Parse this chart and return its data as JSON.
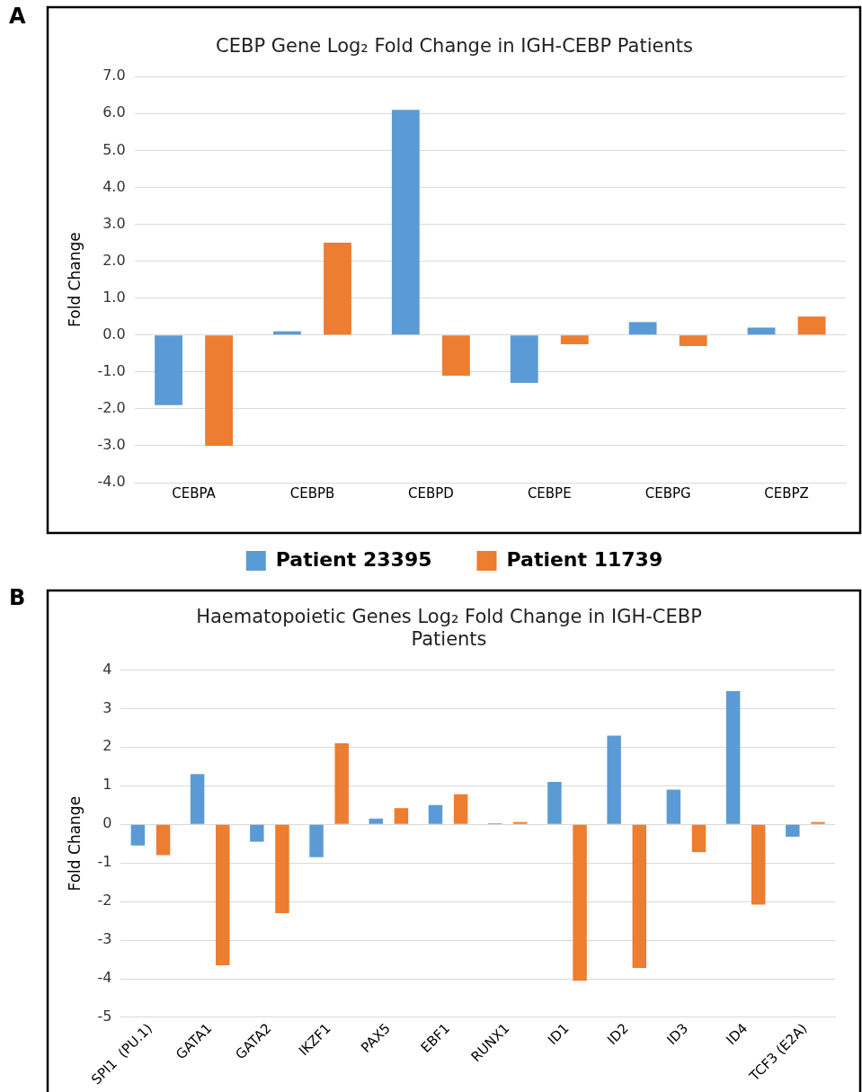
{
  "chart_data": [
    {
      "type": "bar",
      "title": "CEBP Gene Log₂ Fold Change in IGH-CEBP Patients",
      "ylabel": "Fold Change",
      "categories": [
        "CEBPA",
        "CEBPB",
        "CEBPD",
        "CEBPE",
        "CEBPG",
        "CEBPZ"
      ],
      "series": [
        {
          "name": "Patient 23395",
          "color": "#5b9bd5",
          "values": [
            -1.9,
            0.1,
            6.1,
            -1.3,
            0.35,
            0.2
          ]
        },
        {
          "name": "Patient 11739",
          "color": "#ed7d31",
          "values": [
            -3.0,
            2.5,
            -1.1,
            -0.25,
            -0.3,
            0.5
          ]
        }
      ],
      "ylim": [
        -4,
        7
      ],
      "yticks": [
        {
          "value": -4,
          "label": "-4.0"
        },
        {
          "value": -3,
          "label": "-3.0"
        },
        {
          "value": -2,
          "label": "-2.0"
        },
        {
          "value": -1,
          "label": "-1.0"
        },
        {
          "value": 0,
          "label": "0.0"
        },
        {
          "value": 1,
          "label": "1.0"
        },
        {
          "value": 2,
          "label": "2.0"
        },
        {
          "value": 3,
          "label": "3.0"
        },
        {
          "value": 4,
          "label": "4.0"
        },
        {
          "value": 5,
          "label": "5.0"
        },
        {
          "value": 6,
          "label": "6.0"
        },
        {
          "value": 7,
          "label": "7.0"
        }
      ],
      "grid": "y",
      "legend": "bottom",
      "annotations": [
        "A"
      ]
    },
    {
      "type": "bar",
      "title": "Haematopoietic Genes Log₂ Fold Change in IGH-CEBP Patients",
      "ylabel": "Fold Change",
      "categories": [
        "SPI1  (PU.1)",
        "GATA1",
        "GATA2",
        "IKZF1",
        "PAX5",
        "EBF1",
        "RUNX1",
        "ID1",
        "ID2",
        "ID3",
        "ID4",
        "TCF3 (E2A)"
      ],
      "series": [
        {
          "color": "#5b9bd5",
          "values": [
            -0.55,
            1.3,
            -0.45,
            -0.85,
            0.15,
            0.5,
            0.03,
            1.1,
            2.3,
            0.9,
            3.45,
            -0.32
          ]
        },
        {
          "color": "#ed7d31",
          "values": [
            -0.8,
            -3.65,
            -2.3,
            2.1,
            0.42,
            0.78,
            0.06,
            -4.05,
            -3.72,
            -0.72,
            -2.08,
            0.06
          ]
        }
      ],
      "ylim": [
        -5,
        4
      ],
      "yticks": [
        -5,
        -4,
        -3,
        -2,
        -1,
        0,
        1,
        2,
        3,
        4
      ],
      "grid": "y",
      "annotations": [
        "B"
      ]
    }
  ]
}
